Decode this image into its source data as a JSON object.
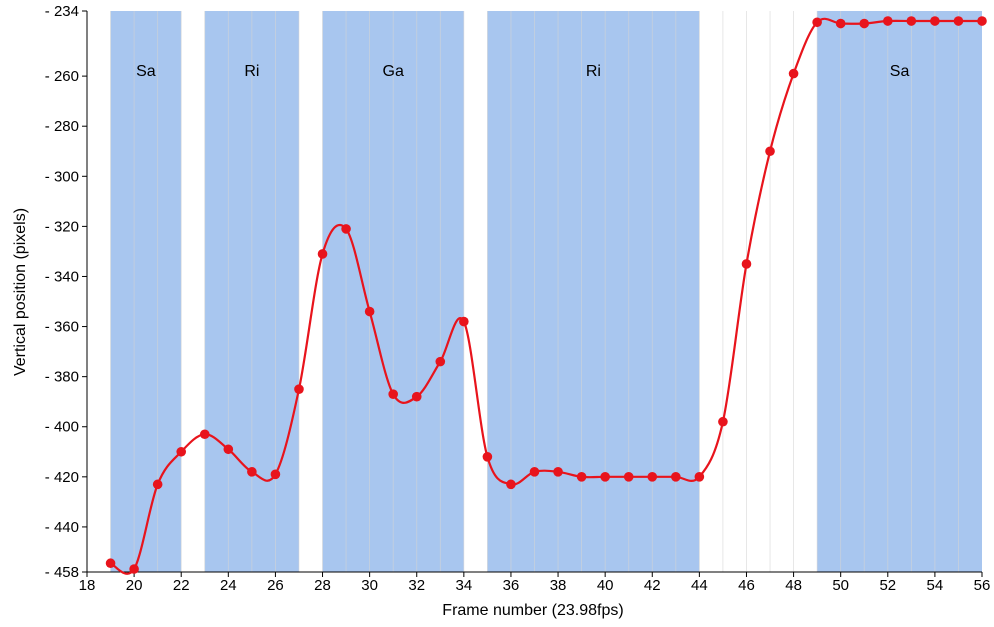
{
  "chart_data": {
    "type": "line",
    "title": "",
    "xlabel": "Frame number (23.98fps)",
    "ylabel": "Vertical position (pixels)",
    "xlim": [
      18,
      56
    ],
    "ylim": [
      -458,
      -234
    ],
    "x_ticks": [
      18,
      20,
      22,
      24,
      26,
      28,
      30,
      32,
      34,
      36,
      38,
      40,
      42,
      44,
      46,
      48,
      50,
      52,
      54,
      56
    ],
    "x_tick_labels": [
      "18",
      "20",
      "22",
      "24",
      "26",
      "28",
      "30",
      "32",
      "34",
      "36",
      "38",
      "40",
      "42",
      "44",
      "46",
      "48",
      "50",
      "52",
      "54",
      "56"
    ],
    "y_ticks": [
      -234,
      -260,
      -280,
      -300,
      -320,
      -340,
      -360,
      -380,
      -400,
      -420,
      -440,
      -458
    ],
    "y_tick_labels": [
      "- 234",
      "- 260",
      "- 280",
      "- 300",
      "- 320",
      "- 340",
      "- 360",
      "- 380",
      "- 400",
      "- 420",
      "- 440",
      "- 458"
    ],
    "regions": [
      {
        "label": "Sa",
        "x0": 19,
        "x1": 22
      },
      {
        "label": "Ri",
        "x0": 23,
        "x1": 27
      },
      {
        "label": "Ga",
        "x0": 28,
        "x1": 34
      },
      {
        "label": "Ri",
        "x0": 35,
        "x1": 44
      },
      {
        "label": "Sa",
        "x0": 49,
        "x1": 56
      }
    ],
    "series": [
      {
        "x": [
          19,
          20,
          21,
          22,
          23,
          24,
          25,
          26,
          27,
          28,
          29,
          30,
          31,
          32,
          33,
          34,
          35,
          36,
          37,
          38,
          39,
          40,
          41,
          42,
          43,
          44,
          45,
          46,
          47,
          48,
          49,
          50,
          51,
          52,
          53,
          54,
          55,
          56
        ],
        "y": [
          -454.5,
          -456.8,
          -423,
          -410,
          -403,
          -409,
          -418,
          -419,
          -385,
          -331,
          -321,
          -354,
          -387,
          -388,
          -374,
          -358,
          -412,
          -423,
          -418,
          -418,
          -420,
          -420,
          -420,
          -420,
          -420,
          -420,
          -398,
          -335,
          -290,
          -259,
          -238.5,
          -239,
          -239,
          -238,
          -238,
          -238,
          -238,
          -238
        ]
      }
    ],
    "grid": "vertical",
    "colors": {
      "series": "#e8141c",
      "region": "#a8c6ef",
      "grid": "#d4d4d4",
      "axis": "#000000"
    }
  }
}
